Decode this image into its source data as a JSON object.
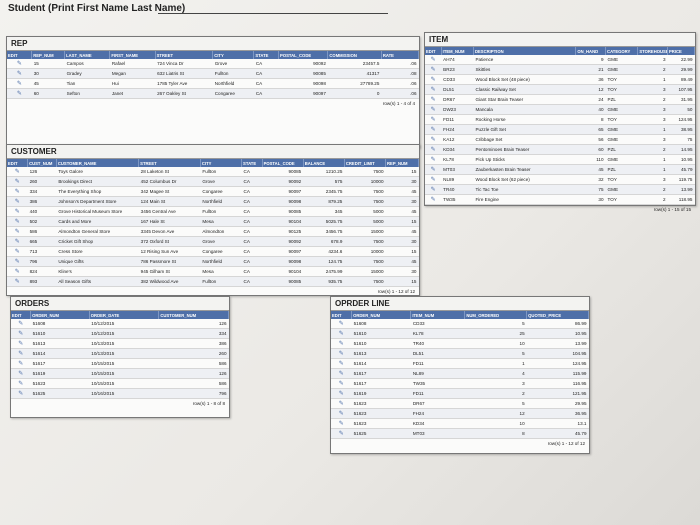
{
  "student": {
    "label": "Student (Print First Name Last Name)"
  },
  "rep": {
    "title": "REP",
    "columns": [
      "EDIT",
      "REP_NUM",
      "LAST_NAME",
      "FIRST_NAME",
      "STREET",
      "CITY",
      "STATE",
      "POSTAL_CODE",
      "COMMISSION",
      "RATE"
    ],
    "rows": [
      [
        "15",
        "Campos",
        "Rafael",
        "724 Vinca Dr",
        "Grove",
        "CA",
        "90092",
        "23457.5",
        ".06"
      ],
      [
        "30",
        "Gradey",
        "Megan",
        "632 Liatris St",
        "Fullton",
        "CA",
        "90085",
        "41317",
        ".08"
      ],
      [
        "45",
        "Tian",
        "Hui",
        "1785 Tyler Ave",
        "Northfield",
        "CA",
        "90098",
        "27789.25",
        ".06"
      ],
      [
        "60",
        "Sefton",
        "Janet",
        "267 Oakley St",
        "Congaree",
        "CA",
        "90097",
        "0",
        ".06"
      ]
    ],
    "rowinfo": "row(s) 1 - 4 of 4"
  },
  "customer": {
    "title": "CUSTOMER",
    "columns": [
      "EDIT",
      "CUST_NUM",
      "CUSTOMER_NAME",
      "STREET",
      "CITY",
      "STATE",
      "POSTAL_CODE",
      "BALANCE",
      "CREDIT_LIMIT",
      "REP_NUM"
    ],
    "rows": [
      [
        "126",
        "Toys Galore",
        "28 Laketon St",
        "Fullton",
        "CA",
        "90085",
        "1210.25",
        "7500",
        "15"
      ],
      [
        "260",
        "Brookings Direct",
        "452 Columbus Dr",
        "Grove",
        "CA",
        "90092",
        "575",
        "10000",
        "30"
      ],
      [
        "334",
        "The Everything Shop",
        "342 Magee St",
        "Congaree",
        "CA",
        "90097",
        "2345.75",
        "7500",
        "45"
      ],
      [
        "386",
        "Johnson's Department Store",
        "124 Main St",
        "Northfield",
        "CA",
        "90098",
        "879.25",
        "7500",
        "30"
      ],
      [
        "440",
        "Grove Historical Museum Store",
        "3456 Central Ave",
        "Fullton",
        "CA",
        "90085",
        "345",
        "5000",
        "45"
      ],
      [
        "502",
        "Cards and More",
        "167 Hale St",
        "Mesa",
        "CA",
        "90104",
        "5025.75",
        "5000",
        "15"
      ],
      [
        "586",
        "Almondton General Store",
        "3345 Devon Ave",
        "Almondton",
        "CA",
        "90125",
        "3456.75",
        "15000",
        "45"
      ],
      [
        "665",
        "Cricket Gift Shop",
        "372 Oxford St",
        "Grove",
        "CA",
        "90092",
        "678.9",
        "7500",
        "30"
      ],
      [
        "713",
        "Cress Store",
        "12 Rising Sun Ave",
        "Congaree",
        "CA",
        "90097",
        "4234.6",
        "10000",
        "15"
      ],
      [
        "796",
        "Unique Gifts",
        "786 Passmore St",
        "Northfield",
        "CA",
        "90098",
        "124.75",
        "7500",
        "45"
      ],
      [
        "824",
        "Kline's",
        "945 Gilham St",
        "Mesa",
        "CA",
        "90104",
        "2475.99",
        "15000",
        "30"
      ],
      [
        "893",
        "All Season Gifts",
        "382 Wildwood Ave",
        "Fullton",
        "CA",
        "90085",
        "935.75",
        "7500",
        "15"
      ]
    ],
    "rowinfo": "row(s) 1 - 12 of 12"
  },
  "orders": {
    "title": "ORDERS",
    "columns": [
      "EDIT",
      "ORDER_NUM",
      "ORDER_DATE",
      "CUSTOMER_NUM"
    ],
    "rows": [
      [
        "51608",
        "10/12/2015",
        "126"
      ],
      [
        "51610",
        "10/12/2015",
        "334"
      ],
      [
        "51613",
        "10/13/2015",
        "386"
      ],
      [
        "51614",
        "10/13/2015",
        "260"
      ],
      [
        "51617",
        "10/15/2015",
        "586"
      ],
      [
        "51619",
        "10/15/2015",
        "126"
      ],
      [
        "51623",
        "10/15/2015",
        "586"
      ],
      [
        "51625",
        "10/16/2015",
        "796"
      ]
    ],
    "rowinfo": "row(s) 1 - 8 of 8"
  },
  "orderline": {
    "title": "OPRDER LINE",
    "columns": [
      "EDIT",
      "ORDER_NUM",
      "ITEM_NUM",
      "NUM_ORDERED",
      "QUOTED_PRICE"
    ],
    "rows": [
      [
        "51608",
        "CD33",
        "5",
        "86.99"
      ],
      [
        "51610",
        "KL78",
        "25",
        "10.95"
      ],
      [
        "51610",
        "TR40",
        "10",
        "13.99"
      ],
      [
        "51613",
        "DL51",
        "5",
        "104.95"
      ],
      [
        "51614",
        "FD11",
        "1",
        "124.95"
      ],
      [
        "51617",
        "NL89",
        "4",
        "115.99"
      ],
      [
        "51617",
        "TW35",
        "3",
        "116.95"
      ],
      [
        "51619",
        "FD11",
        "2",
        "121.95"
      ],
      [
        "51623",
        "DR67",
        "5",
        "29.95"
      ],
      [
        "51623",
        "FH24",
        "12",
        "36.95"
      ],
      [
        "51623",
        "KD34",
        "10",
        "13.1"
      ],
      [
        "51625",
        "MT03",
        "8",
        "45.79"
      ]
    ],
    "rowinfo": "row(s) 1 - 12 of 12"
  },
  "item": {
    "title": "ITEM",
    "columns": [
      "EDIT",
      "ITEM_NUM",
      "DESCRIPTION",
      "ON_HAND",
      "CATEGORY",
      "STOREHOUSE",
      "PRICE"
    ],
    "rows": [
      [
        "AH74",
        "Patience",
        "9",
        "GME",
        "3",
        "22.99"
      ],
      [
        "BR23",
        "Skittles",
        "21",
        "GME",
        "2",
        "29.99"
      ],
      [
        "CD33",
        "Wood Block Set (48 piece)",
        "36",
        "TOY",
        "1",
        "89.49"
      ],
      [
        "DL51",
        "Classic Railway Set",
        "12",
        "TOY",
        "3",
        "107.95"
      ],
      [
        "DR67",
        "Giant Star Brain Teaser",
        "24",
        "PZL",
        "2",
        "31.95"
      ],
      [
        "DW23",
        "Mancala",
        "40",
        "GME",
        "3",
        "50"
      ],
      [
        "FD11",
        "Rocking Horse",
        "8",
        "TOY",
        "3",
        "124.95"
      ],
      [
        "FH24",
        "Puzzle Gift Set",
        "65",
        "GME",
        "1",
        "38.95"
      ],
      [
        "KA12",
        "Cribbage Set",
        "56",
        "GME",
        "3",
        "75"
      ],
      [
        "KD34",
        "Pentominoes Brain Teaser",
        "60",
        "PZL",
        "2",
        "14.95"
      ],
      [
        "KL78",
        "Pick Up Sticks",
        "110",
        "GME",
        "1",
        "10.95"
      ],
      [
        "MT03",
        "Zauberkasten Brain Teaser",
        "45",
        "PZL",
        "1",
        "45.79"
      ],
      [
        "NL89",
        "Wood Block Set (62 piece)",
        "32",
        "TOY",
        "3",
        "119.75"
      ],
      [
        "TR40",
        "Tic Tac Toe",
        "75",
        "GME",
        "2",
        "13.99"
      ],
      [
        "TW35",
        "Fire Engine",
        "30",
        "TOY",
        "2",
        "118.95"
      ]
    ],
    "rowinfo": "row(s) 1 - 15 of 15"
  }
}
